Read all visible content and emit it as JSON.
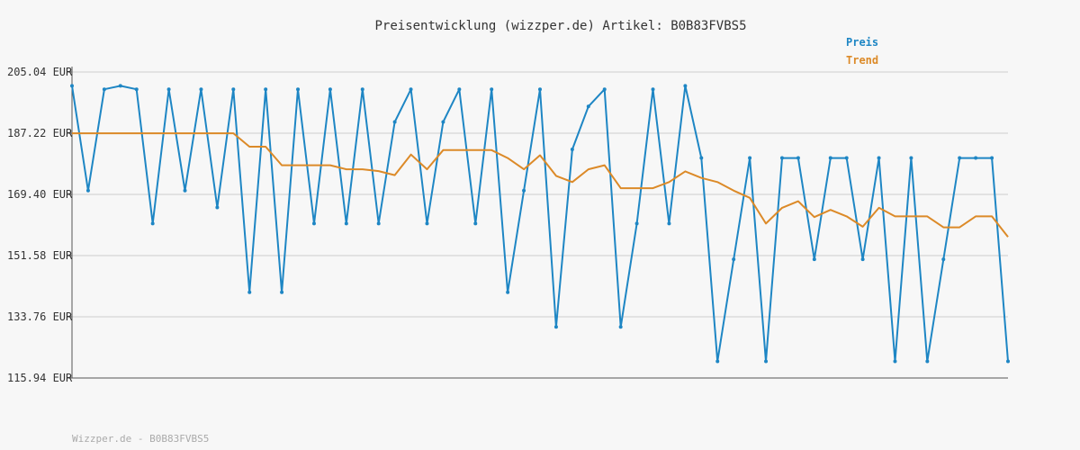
{
  "chart_data": {
    "type": "line",
    "title": "Preisentwicklung (wizzper.de) Artikel: B0B83FVBS5",
    "footer": "Wizzper.de - B0B83FVBS5",
    "y_unit": "EUR",
    "ylim": [
      115.94,
      205.04
    ],
    "y_ticks": [
      205.04,
      187.22,
      169.4,
      151.58,
      133.76,
      115.94
    ],
    "y_tick_labels": [
      "205.04 EUR",
      "187.22 EUR",
      "169.40 EUR",
      "151.58 EUR",
      "133.76 EUR",
      "115.94 EUR"
    ],
    "grid": true,
    "legend_position": "top-right",
    "n_points": 59,
    "series": [
      {
        "name": "Preis",
        "color": "#1e86c4",
        "values": [
          201.0,
          170.5,
          200.0,
          201.0,
          200.0,
          160.9,
          200.0,
          170.5,
          200.0,
          165.6,
          200.0,
          140.9,
          200.0,
          140.9,
          200.0,
          160.9,
          200.0,
          160.9,
          200.0,
          160.9,
          190.5,
          200.0,
          160.9,
          190.5,
          200.0,
          160.9,
          200.0,
          140.9,
          170.5,
          200.0,
          130.8,
          182.5,
          195.0,
          200.0,
          130.8,
          160.9,
          200.0,
          160.9,
          201.0,
          180.0,
          120.8,
          150.5,
          180.0,
          120.8,
          180.0,
          180.0,
          150.5,
          180.0,
          180.0,
          150.5,
          180.0,
          120.8,
          180.0,
          120.8,
          150.5,
          180.0,
          180.0,
          180.0,
          120.8
        ]
      },
      {
        "name": "Trend",
        "color": "#dc8a28",
        "values": [
          187.2,
          187.2,
          187.2,
          187.2,
          187.2,
          187.2,
          187.2,
          187.2,
          187.2,
          187.2,
          187.2,
          183.3,
          183.3,
          177.9,
          177.9,
          177.9,
          177.9,
          176.7,
          176.7,
          176.2,
          175.0,
          181.0,
          176.7,
          182.3,
          182.3,
          182.3,
          182.3,
          180.0,
          176.7,
          180.8,
          174.8,
          173.0,
          176.7,
          177.9,
          171.2,
          171.2,
          171.2,
          173.0,
          176.1,
          174.2,
          173.0,
          170.5,
          168.4,
          160.9,
          165.5,
          167.4,
          162.8,
          164.9,
          163.0,
          160.0,
          165.5,
          163.0,
          163.0,
          163.0,
          159.8,
          159.8,
          163.0,
          163.0,
          157.0
        ]
      }
    ]
  }
}
